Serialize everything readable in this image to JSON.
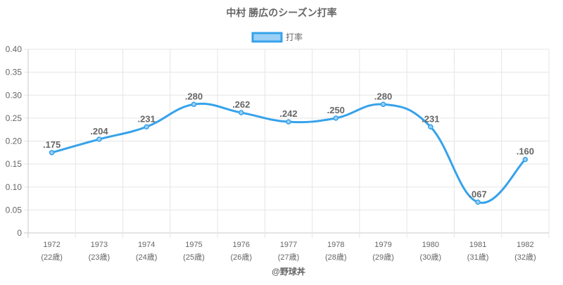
{
  "chart_data": {
    "type": "line",
    "title": "中村 勝広のシーズン打率",
    "legend": {
      "label": "打率",
      "placement": "top-center"
    },
    "categories": [
      "1972",
      "1973",
      "1974",
      "1975",
      "1976",
      "1977",
      "1978",
      "1979",
      "1980",
      "1981",
      "1982"
    ],
    "sublabels": [
      "(22歳)",
      "(23歳)",
      "(24歳)",
      "(25歳)",
      "(26歳)",
      "(27歳)",
      "(28歳)",
      "(29歳)",
      "(30歳)",
      "(31歳)",
      "(32歳)"
    ],
    "series": [
      {
        "name": "打率",
        "values": [
          0.175,
          0.204,
          0.231,
          0.28,
          0.262,
          0.242,
          0.25,
          0.28,
          0.231,
          0.067,
          0.16
        ]
      }
    ],
    "data_labels": [
      ".175",
      ".204",
      ".231",
      ".280",
      ".262",
      ".242",
      ".250",
      ".280",
      ".231",
      ".067",
      ".160"
    ],
    "yticks": [
      "0",
      "0.05",
      "0.10",
      "0.15",
      "0.20",
      "0.25",
      "0.30",
      "0.35",
      "0.40"
    ],
    "ylim": [
      0,
      0.4
    ],
    "grid": true,
    "colors": {
      "line": "#36a2eb",
      "fill": "#9ad0f5",
      "text": "#666666",
      "grid": "#e5e5e5"
    }
  },
  "footer": "@野球丼"
}
